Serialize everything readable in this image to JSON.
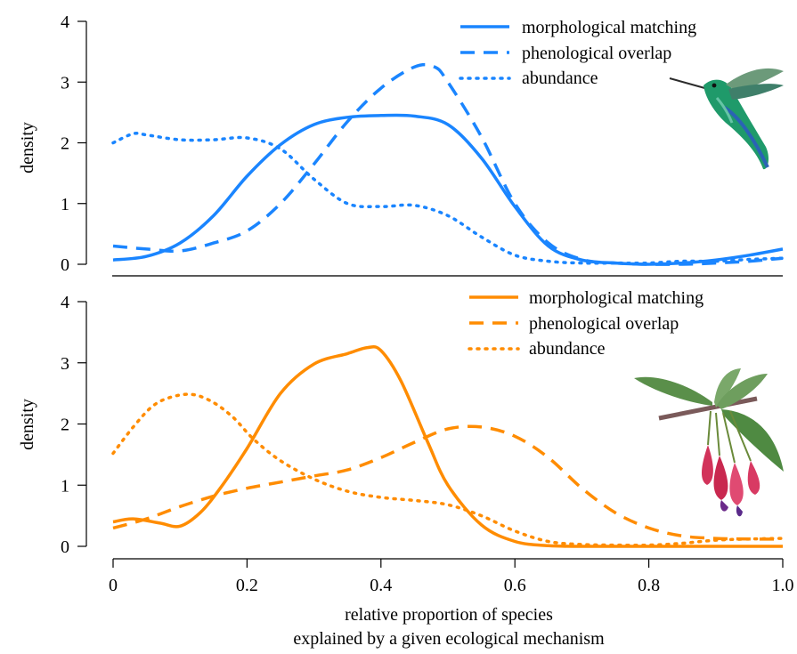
{
  "chart_data": [
    {
      "type": "line",
      "panel": "top",
      "color": "#1a85ff",
      "ylabel": "density",
      "ylim": [
        0,
        4
      ],
      "yticks": [
        0,
        1,
        2,
        3,
        4
      ],
      "xlim": [
        0,
        1
      ],
      "legend_position": "top-right",
      "decoration_icon": "hummingbird-icon",
      "series": [
        {
          "name": "morphological matching",
          "style": "solid",
          "x": [
            0,
            0.05,
            0.1,
            0.15,
            0.2,
            0.25,
            0.3,
            0.35,
            0.4,
            0.45,
            0.5,
            0.55,
            0.6,
            0.65,
            0.7,
            0.75,
            0.8,
            0.85,
            0.9,
            0.95,
            1.0
          ],
          "y": [
            0.07,
            0.13,
            0.35,
            0.8,
            1.45,
            1.97,
            2.3,
            2.42,
            2.45,
            2.44,
            2.3,
            1.75,
            0.95,
            0.3,
            0.07,
            0.02,
            0.0,
            0.02,
            0.07,
            0.15,
            0.25
          ]
        },
        {
          "name": "phenological overlap",
          "style": "dashed",
          "x": [
            0,
            0.05,
            0.1,
            0.15,
            0.2,
            0.25,
            0.3,
            0.35,
            0.4,
            0.45,
            0.48,
            0.5,
            0.55,
            0.6,
            0.65,
            0.7,
            0.75,
            0.8,
            0.85,
            0.9,
            0.95,
            1.0
          ],
          "y": [
            0.3,
            0.25,
            0.22,
            0.35,
            0.55,
            1.0,
            1.65,
            2.35,
            2.9,
            3.25,
            3.25,
            3.0,
            2.1,
            1.0,
            0.35,
            0.08,
            0.02,
            0.0,
            0.0,
            0.02,
            0.05,
            0.1
          ]
        },
        {
          "name": "abundance",
          "style": "dotted",
          "x": [
            0,
            0.03,
            0.05,
            0.1,
            0.15,
            0.2,
            0.25,
            0.3,
            0.35,
            0.4,
            0.45,
            0.5,
            0.55,
            0.6,
            0.65,
            0.7,
            0.75,
            0.8,
            0.85,
            0.9,
            0.95,
            1.0
          ],
          "y": [
            2.0,
            2.15,
            2.13,
            2.05,
            2.05,
            2.08,
            1.9,
            1.4,
            1.0,
            0.95,
            0.97,
            0.8,
            0.45,
            0.15,
            0.05,
            0.02,
            0.02,
            0.02,
            0.05,
            0.05,
            0.08,
            0.1
          ]
        }
      ]
    },
    {
      "type": "line",
      "panel": "bottom",
      "color": "#ff8c00",
      "ylabel": "density",
      "xlabel_line1": "relative proportion of species",
      "xlabel_line2": "explained by a given ecological mechanism",
      "ylim": [
        0,
        4
      ],
      "yticks": [
        0,
        1,
        2,
        3,
        4
      ],
      "xlim": [
        0,
        1
      ],
      "xticks": [
        0,
        0.2,
        0.4,
        0.6,
        0.8,
        1.0
      ],
      "xtick_labels": [
        "0",
        "0.2",
        "0.4",
        "0.6",
        "0.8",
        "1.0"
      ],
      "legend_position": "top-right",
      "decoration_icon": "fuchsia-flower-icon",
      "series": [
        {
          "name": "morphological matching",
          "style": "solid",
          "x": [
            0,
            0.03,
            0.07,
            0.1,
            0.13,
            0.16,
            0.2,
            0.25,
            0.3,
            0.35,
            0.38,
            0.4,
            0.43,
            0.47,
            0.5,
            0.55,
            0.6,
            0.65,
            0.7,
            0.75,
            0.8,
            0.9,
            1.0
          ],
          "y": [
            0.4,
            0.45,
            0.38,
            0.33,
            0.55,
            0.95,
            1.6,
            2.5,
            2.98,
            3.15,
            3.25,
            3.2,
            2.7,
            1.7,
            1.0,
            0.35,
            0.08,
            0.01,
            0.0,
            0.0,
            0.0,
            0.0,
            0.0
          ]
        },
        {
          "name": "phenological overlap",
          "style": "dashed",
          "x": [
            0,
            0.05,
            0.1,
            0.15,
            0.2,
            0.25,
            0.3,
            0.35,
            0.4,
            0.45,
            0.5,
            0.55,
            0.6,
            0.65,
            0.7,
            0.75,
            0.8,
            0.85,
            0.9,
            0.95,
            1.0
          ],
          "y": [
            0.3,
            0.45,
            0.65,
            0.82,
            0.95,
            1.05,
            1.15,
            1.25,
            1.45,
            1.7,
            1.92,
            1.95,
            1.8,
            1.45,
            0.95,
            0.55,
            0.3,
            0.17,
            0.13,
            0.12,
            0.12
          ]
        },
        {
          "name": "abundance",
          "style": "dotted",
          "x": [
            0,
            0.03,
            0.06,
            0.09,
            0.12,
            0.15,
            0.18,
            0.21,
            0.25,
            0.3,
            0.35,
            0.4,
            0.45,
            0.5,
            0.55,
            0.6,
            0.65,
            0.7,
            0.75,
            0.8,
            0.85,
            0.9,
            0.95,
            1.0
          ],
          "y": [
            1.52,
            1.95,
            2.3,
            2.45,
            2.48,
            2.35,
            2.1,
            1.75,
            1.4,
            1.1,
            0.9,
            0.8,
            0.75,
            0.68,
            0.5,
            0.25,
            0.08,
            0.03,
            0.02,
            0.02,
            0.05,
            0.1,
            0.12,
            0.13
          ]
        }
      ]
    }
  ]
}
